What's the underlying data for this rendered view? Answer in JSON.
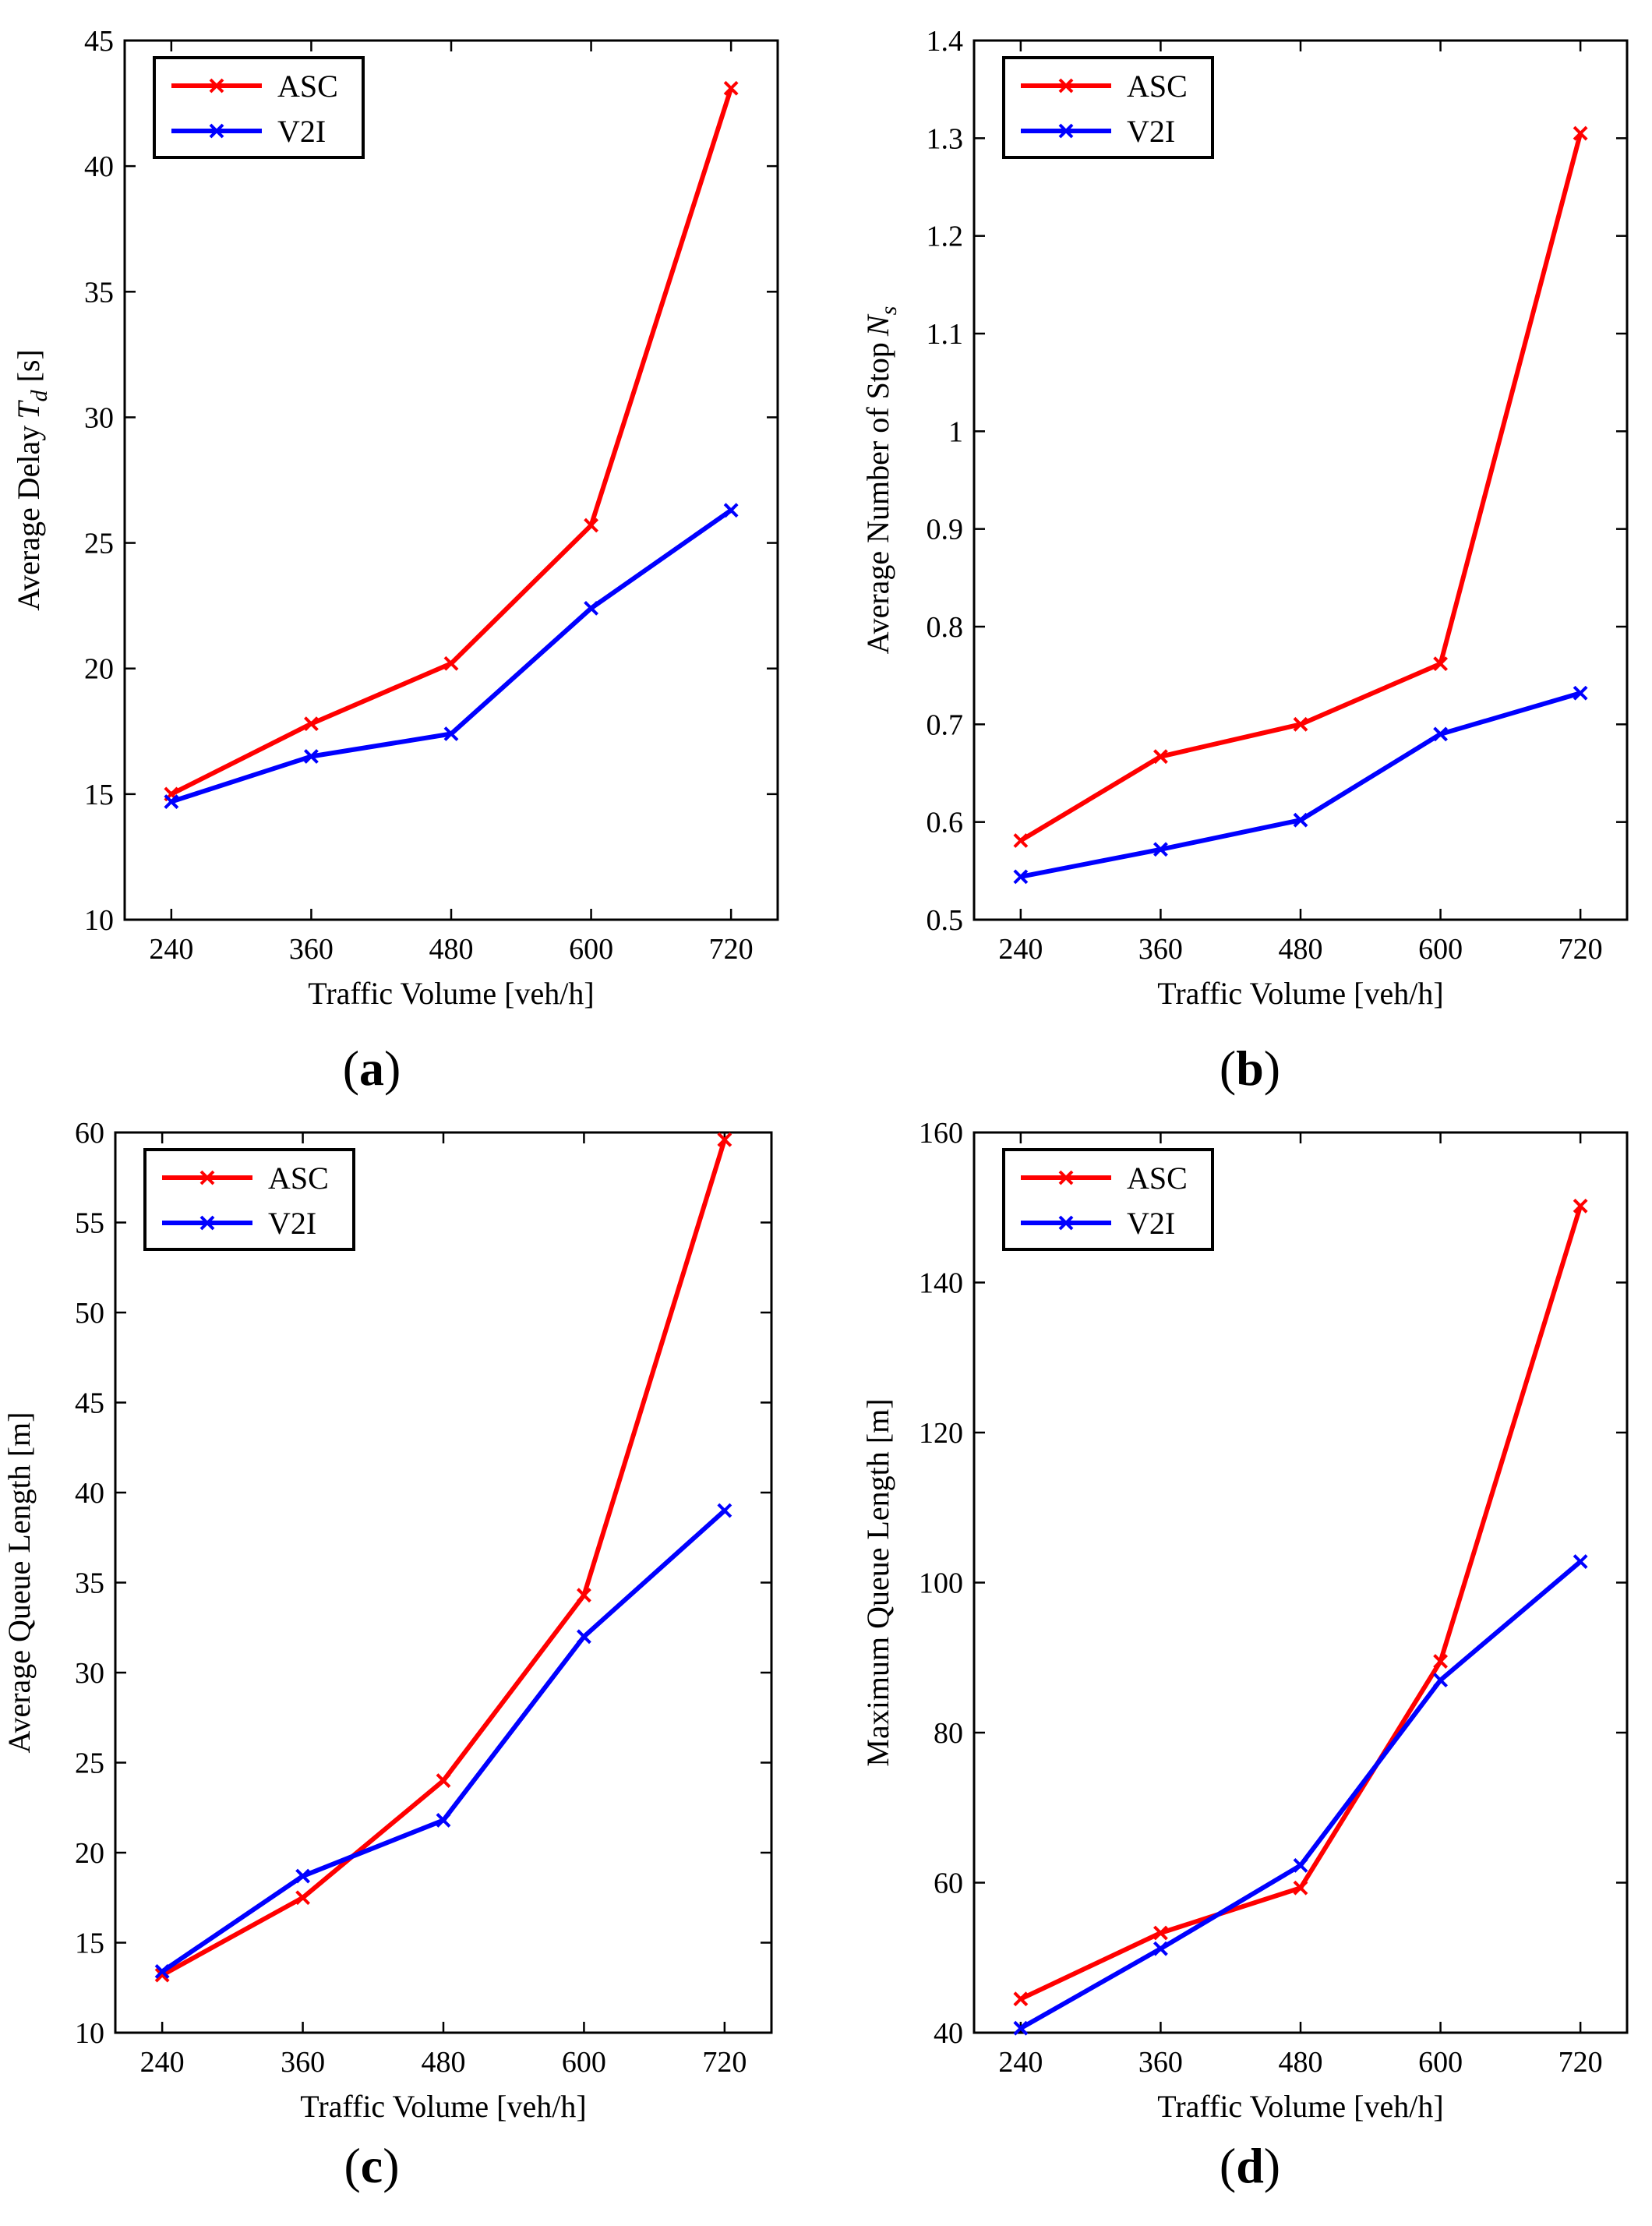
{
  "figure": {
    "panels": [
      {
        "caption": "(a)",
        "caption_letter": "a",
        "chart_data": {
          "type": "line",
          "x": [
            240,
            360,
            480,
            600,
            720
          ],
          "xlim": [
            200,
            760
          ],
          "ylim": [
            10,
            45
          ],
          "xticks": [
            240,
            360,
            480,
            600,
            720
          ],
          "yticks": [
            10,
            15,
            20,
            25,
            30,
            35,
            40,
            45
          ],
          "xlabel": "Traffic Volume [veh/h]",
          "ylabel": "Average Delay",
          "ylabel_var": "T",
          "ylabel_sub": "d",
          "ylabel_unit": " [s]",
          "legend_position": "top-left",
          "grid": false,
          "series": [
            {
              "name": "ASC",
              "color": "#ff0000",
              "values": [
                15.0,
                17.8,
                20.2,
                25.7,
                43.1
              ]
            },
            {
              "name": "V2I",
              "color": "#0000ff",
              "values": [
                14.7,
                16.5,
                17.4,
                22.4,
                26.3
              ]
            }
          ]
        }
      },
      {
        "caption": "(b)",
        "caption_letter": "b",
        "chart_data": {
          "type": "line",
          "x": [
            240,
            360,
            480,
            600,
            720
          ],
          "xlim": [
            200,
            760
          ],
          "ylim": [
            0.5,
            1.4
          ],
          "xticks": [
            240,
            360,
            480,
            600,
            720
          ],
          "yticks": [
            0.5,
            0.6,
            0.7,
            0.8,
            0.9,
            1,
            1.1,
            1.2,
            1.3,
            1.4
          ],
          "xlabel": "Traffic Volume [veh/h]",
          "ylabel": "Average Number of Stop",
          "ylabel_var": "N",
          "ylabel_sub": "s",
          "ylabel_unit": "",
          "legend_position": "top-left",
          "grid": false,
          "series": [
            {
              "name": "ASC",
              "color": "#ff0000",
              "values": [
                0.581,
                0.667,
                0.7,
                0.762,
                1.305
              ]
            },
            {
              "name": "V2I",
              "color": "#0000ff",
              "values": [
                0.544,
                0.572,
                0.602,
                0.69,
                0.732
              ]
            }
          ]
        }
      },
      {
        "caption": "(c)",
        "caption_letter": "c",
        "chart_data": {
          "type": "line",
          "x": [
            240,
            360,
            480,
            600,
            720
          ],
          "xlim": [
            200,
            760
          ],
          "ylim": [
            10,
            60
          ],
          "xticks": [
            240,
            360,
            480,
            600,
            720
          ],
          "yticks": [
            10,
            15,
            20,
            25,
            30,
            35,
            40,
            45,
            50,
            55,
            60
          ],
          "xlabel": "Traffic Volume [veh/h]",
          "ylabel": "Average Queue Length [m]",
          "ylabel_var": "",
          "ylabel_sub": "",
          "ylabel_unit": "",
          "legend_position": "top-left",
          "grid": false,
          "series": [
            {
              "name": "ASC",
              "color": "#ff0000",
              "values": [
                13.2,
                17.5,
                24.0,
                34.3,
                59.6
              ]
            },
            {
              "name": "V2I",
              "color": "#0000ff",
              "values": [
                13.4,
                18.7,
                21.8,
                32.0,
                39.0
              ]
            }
          ]
        }
      },
      {
        "caption": "(d)",
        "caption_letter": "d",
        "chart_data": {
          "type": "line",
          "x": [
            240,
            360,
            480,
            600,
            720
          ],
          "xlim": [
            200,
            760
          ],
          "ylim": [
            40,
            160
          ],
          "xticks": [
            240,
            360,
            480,
            600,
            720
          ],
          "yticks": [
            40,
            60,
            80,
            100,
            120,
            140,
            160
          ],
          "xlabel": "Traffic Volume [veh/h]",
          "ylabel": "Maximum Queue Length [m]",
          "ylabel_var": "",
          "ylabel_sub": "",
          "ylabel_unit": "",
          "legend_position": "top-left",
          "grid": false,
          "series": [
            {
              "name": "ASC",
              "color": "#ff0000",
              "values": [
                44.5,
                53.3,
                59.3,
                89.5,
                150.2
              ]
            },
            {
              "name": "V2I",
              "color": "#0000ff",
              "values": [
                40.6,
                51.2,
                62.3,
                87.0,
                102.8
              ]
            }
          ]
        }
      }
    ]
  }
}
